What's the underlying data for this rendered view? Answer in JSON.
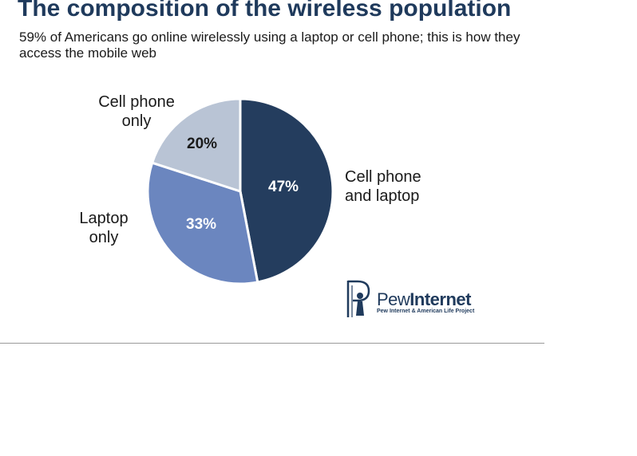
{
  "chart_data": {
    "type": "pie",
    "title": "The composition of the wireless population",
    "subtitle": "59% of Americans go online wirelessly using a laptop or cell phone; this is how they access the mobile web",
    "categories": [
      "Cell phone and laptop",
      "Laptop only",
      "Cell phone only"
    ],
    "values": [
      47,
      33,
      20
    ],
    "data_labels": [
      "47%",
      "33%",
      "20%"
    ],
    "colors": [
      "#243d5e",
      "#6b86bf",
      "#b9c4d5"
    ],
    "label_colors": [
      "#ffffff",
      "#ffffff",
      "#1a1a1a"
    ],
    "start_angle_deg": 0,
    "direction": "clockwise"
  },
  "labels": {
    "cell_phone_and_laptop": [
      "Cell phone",
      "and laptop"
    ],
    "laptop_only": [
      "Laptop",
      "only"
    ],
    "cell_phone_only": [
      "Cell phone",
      "only"
    ]
  },
  "logo": {
    "word_regular": "Pew",
    "word_bold": "Internet",
    "tagline": "Pew Internet & American Life Project",
    "color": "#1f3a5c"
  }
}
